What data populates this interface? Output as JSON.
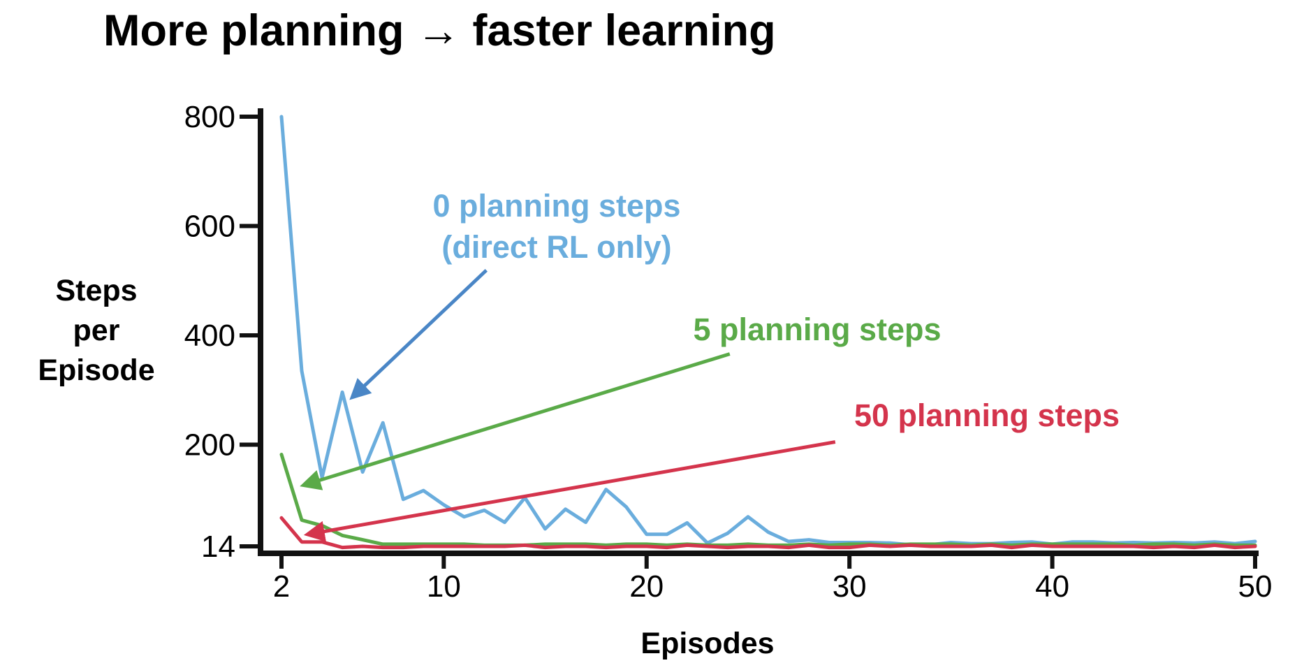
{
  "title": "More planning → faster learning",
  "colors": {
    "zero_planning": "#6aaddd",
    "zero_arrow": "#4a86c6",
    "five_planning": "#5aaa48",
    "fifty_planning": "#d4344c",
    "axis": "#111111"
  },
  "chart_data": {
    "type": "line",
    "title": "",
    "xlabel": "Episodes",
    "ylabel_lines": [
      "Steps",
      "per",
      "Episode"
    ],
    "xlim": [
      2,
      50
    ],
    "ylim": [
      14,
      800
    ],
    "x_ticks": [
      2,
      10,
      20,
      30,
      40,
      50
    ],
    "y_ticks": [
      14,
      200,
      400,
      600,
      800
    ],
    "grid": false,
    "legend": "none (series labelled by annotations with arrows)",
    "series": [
      {
        "key": "zero",
        "color": "#6aaddd",
        "x": [
          2,
          3,
          4,
          5,
          6,
          7,
          8,
          9,
          10,
          11,
          12,
          13,
          14,
          15,
          16,
          17,
          18,
          19,
          20,
          21,
          22,
          23,
          24,
          25,
          26,
          27,
          28,
          29,
          30,
          31,
          32,
          33,
          34,
          35,
          36,
          37,
          38,
          39,
          40,
          41,
          42,
          43,
          44,
          45,
          46,
          47,
          48,
          49,
          50
        ],
        "values": [
          800,
          335,
          140,
          296,
          150,
          240,
          100,
          116,
          90,
          68,
          80,
          58,
          103,
          46,
          82,
          58,
          118,
          86,
          36,
          36,
          57,
          20,
          38,
          68,
          40,
          23,
          26,
          21,
          21,
          21,
          20,
          17,
          17,
          21,
          19,
          19,
          21,
          22,
          18,
          22,
          22,
          20,
          21,
          20,
          21,
          20,
          22,
          19,
          23
        ]
      },
      {
        "key": "five",
        "color": "#5aaa48",
        "x": [
          2,
          3,
          4,
          5,
          6,
          7,
          8,
          9,
          10,
          11,
          12,
          13,
          14,
          15,
          16,
          17,
          18,
          19,
          20,
          21,
          22,
          23,
          24,
          25,
          26,
          27,
          28,
          29,
          30,
          31,
          32,
          33,
          34,
          35,
          36,
          37,
          38,
          39,
          40,
          41,
          42,
          43,
          44,
          45,
          46,
          47,
          48,
          49,
          50
        ],
        "values": [
          182,
          62,
          52,
          34,
          26,
          18,
          18,
          18,
          18,
          18,
          16,
          16,
          16,
          18,
          18,
          18,
          16,
          18,
          18,
          16,
          18,
          16,
          16,
          18,
          16,
          16,
          18,
          16,
          18,
          18,
          16,
          18,
          18,
          18,
          16,
          18,
          16,
          18,
          18,
          18,
          18,
          18,
          16,
          18,
          18,
          16,
          18,
          16,
          16
        ]
      },
      {
        "key": "fifty",
        "color": "#d4344c",
        "x": [
          2,
          3,
          4,
          5,
          6,
          7,
          8,
          9,
          10,
          11,
          12,
          13,
          14,
          15,
          16,
          17,
          18,
          19,
          20,
          21,
          22,
          23,
          24,
          25,
          26,
          27,
          28,
          29,
          30,
          31,
          32,
          33,
          34,
          35,
          36,
          37,
          38,
          39,
          40,
          41,
          42,
          43,
          44,
          45,
          46,
          47,
          48,
          49,
          50
        ],
        "values": [
          66,
          22,
          22,
          12,
          14,
          12,
          12,
          14,
          14,
          14,
          14,
          14,
          16,
          12,
          14,
          14,
          12,
          14,
          14,
          12,
          16,
          14,
          12,
          14,
          14,
          12,
          16,
          12,
          12,
          16,
          14,
          16,
          14,
          14,
          14,
          16,
          12,
          16,
          14,
          14,
          14,
          14,
          14,
          12,
          14,
          12,
          16,
          12,
          14
        ]
      }
    ],
    "annotations": [
      {
        "key": "zero",
        "lines": [
          "0 planning steps",
          "(direct RL only)"
        ],
        "color": "#6aaddd",
        "arrow_color": "#4a86c6",
        "arrow_tail": [
          12.1,
          519
        ],
        "arrow_head": [
          5.5,
          287
        ]
      },
      {
        "key": "five",
        "lines": [
          "5 planning steps"
        ],
        "color": "#5aaa48",
        "arrow_color": "#5aaa48",
        "arrow_tail": [
          24.1,
          366
        ],
        "arrow_head": [
          3.1,
          126
        ]
      },
      {
        "key": "fifty",
        "lines": [
          "50 planning steps"
        ],
        "color": "#d4344c",
        "arrow_color": "#d4344c",
        "arrow_tail": [
          29.3,
          205
        ],
        "arrow_head": [
          3.3,
          36
        ]
      }
    ]
  }
}
